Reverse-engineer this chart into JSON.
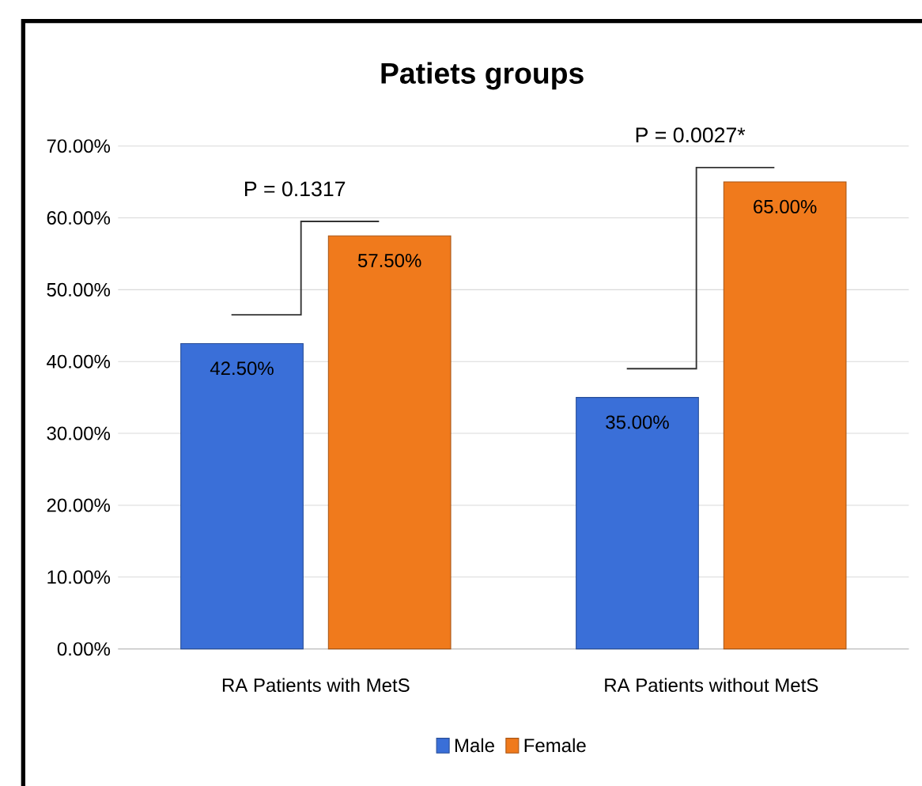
{
  "chart_data": {
    "type": "bar",
    "title": "Patiets groups",
    "categories": [
      "RA Patients with MetS",
      "RA Patients without MetS"
    ],
    "series": [
      {
        "name": "Male",
        "color": "#3a6fd8",
        "values": [
          42.5,
          35
        ],
        "value_labels": [
          "42.50%",
          "35.00%"
        ]
      },
      {
        "name": "Female",
        "color": "#f07a1c",
        "values": [
          57.5,
          65
        ],
        "value_labels": [
          "57.50%",
          "65.00%"
        ]
      }
    ],
    "ylim": [
      0,
      70
    ],
    "yticks": [
      {
        "value": 0,
        "label": "0.00%"
      },
      {
        "value": 10,
        "label": "10.00%"
      },
      {
        "value": 20,
        "label": "20.00%"
      },
      {
        "value": 30,
        "label": "30.00%"
      },
      {
        "value": 40,
        "label": "40.00%"
      },
      {
        "value": 50,
        "label": "50.00%"
      },
      {
        "value": 60,
        "label": "60.00%"
      },
      {
        "value": 70,
        "label": "70.00%"
      }
    ],
    "grid": "y",
    "legend": "bottom",
    "annotations": [
      "P = 0.1317",
      "P = 0.0027*"
    ]
  }
}
